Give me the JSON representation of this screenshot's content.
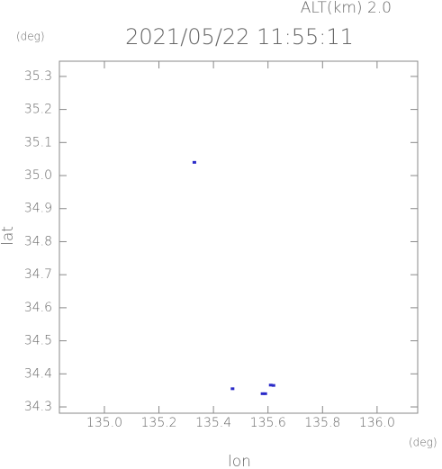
{
  "chart_data": {
    "type": "scatter",
    "title": "2021/05/22 11:55:11",
    "subtitle": "ALT(km) 2.0",
    "y_unit": "(deg)",
    "x_unit": "(deg)",
    "x_label": "lon",
    "y_label": "lat",
    "xlim": [
      134.835,
      136.149
    ],
    "ylim": [
      34.281,
      35.346
    ],
    "xticks": [
      {
        "value": 135.0,
        "label": "135.0"
      },
      135.2,
      135.4,
      135.6,
      135.8,
      {
        "value": 136.0,
        "label": "136.0"
      }
    ],
    "yticks": [
      34.3,
      34.4,
      34.5,
      34.6,
      34.7,
      34.8,
      34.9,
      {
        "value": 35.0,
        "label": "35.0"
      },
      35.1,
      35.2,
      35.3
    ],
    "series": [
      {
        "color": "#2a2ac8",
        "x": [
          135.33,
          135.47,
          135.58,
          135.59,
          135.61,
          135.62
        ],
        "y": [
          35.04,
          34.355,
          34.34,
          34.34,
          34.366,
          34.365
        ]
      }
    ]
  }
}
